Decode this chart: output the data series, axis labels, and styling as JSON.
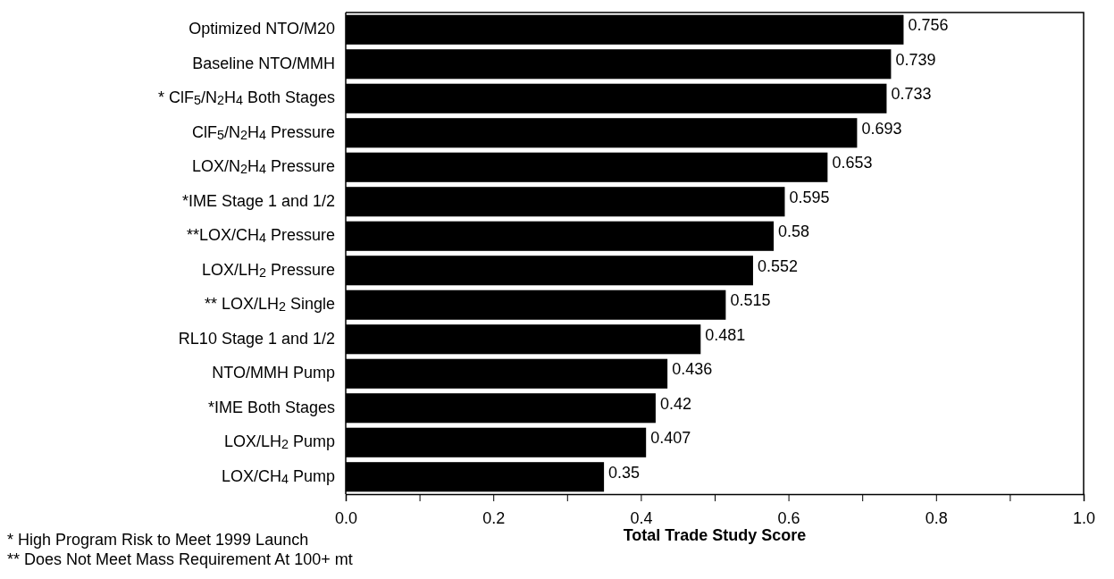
{
  "chart_data": {
    "type": "bar",
    "orientation": "horizontal",
    "categories": [
      "Optimized NTO/M20",
      "Baseline NTO/MMH",
      "* ClF$_{5}$/N$_{2}$H$_{4}$ Both Stages",
      "ClF$_{5}$/N$_{2}$H$_{4}$ Pressure",
      "LOX/N$_{2}$H$_{4}$ Pressure",
      "*IME Stage 1 and 1/2",
      "**LOX/CH$_{4}$ Pressure",
      "LOX/LH$_{2}$ Pressure",
      "** LOX/LH$_{2}$ Single",
      "RL10  Stage 1 and 1/2",
      "NTO/MMH Pump",
      "*IME Both Stages",
      "LOX/LH$_{2}$ Pump",
      "LOX/CH$_{4}$ Pump"
    ],
    "values": [
      0.756,
      0.739,
      0.733,
      0.693,
      0.653,
      0.595,
      0.58,
      0.552,
      0.515,
      0.481,
      0.436,
      0.42,
      0.407,
      0.35
    ],
    "color": "#000000",
    "data_labels": true,
    "xlabel": "Total Trade Study Score",
    "xlim": [
      0,
      1
    ],
    "xticks": [
      {
        "value": 0,
        "label": "0.0"
      },
      {
        "value": 0.1,
        "label": null
      },
      {
        "value": 0.2,
        "label": "0.2"
      },
      {
        "value": 0.3,
        "label": null
      },
      {
        "value": 0.4,
        "label": "0.4"
      },
      {
        "value": 0.5,
        "label": null
      },
      {
        "value": 0.6,
        "label": "0.6"
      },
      {
        "value": 0.7,
        "label": null
      },
      {
        "value": 0.8,
        "label": "0.8"
      },
      {
        "value": 0.9,
        "label": null
      },
      {
        "value": 1,
        "label": "1.0"
      }
    ],
    "annotations": [
      "*  High Program Risk to Meet 1999 Launch",
      "**  Does Not Meet Mass Requirement At 100+ mt"
    ]
  }
}
